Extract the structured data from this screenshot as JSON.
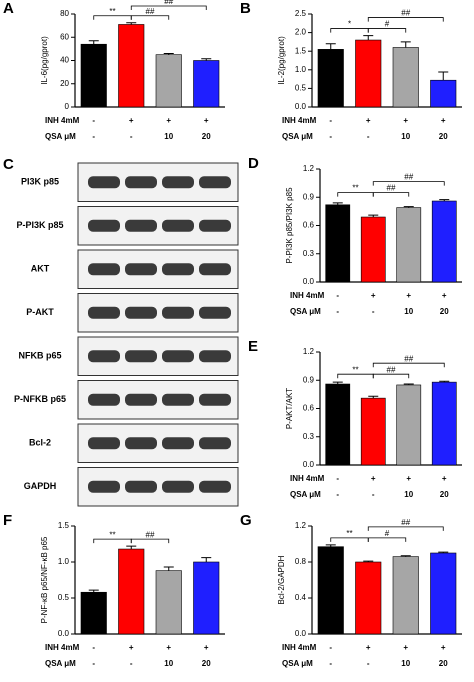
{
  "chart_data": [
    {
      "type": "bar",
      "panel_label": "A",
      "ylabel": "IL-6(pg/gprot)",
      "values": [
        54,
        71,
        45,
        40
      ],
      "errors": [
        3,
        1.5,
        1,
        1.5
      ],
      "colors": [
        "#000000",
        "#ff0000",
        "#a6a6a6",
        "#1f1fff"
      ],
      "ylim": [
        0,
        80
      ],
      "yticks": [
        0,
        20,
        40,
        60,
        80
      ],
      "treatments": [
        {
          "name": "INH 4mM",
          "levels": [
            "-",
            "+",
            "+",
            "+"
          ]
        },
        {
          "name": "QSA μM",
          "levels": [
            "-",
            "-",
            "10",
            "20"
          ]
        }
      ],
      "annotations": [
        {
          "label": "**",
          "from": 0,
          "to": 1
        },
        {
          "label": "##",
          "from": 1,
          "to": 2
        },
        {
          "label": "##",
          "from": 1,
          "to": 3
        }
      ]
    },
    {
      "type": "bar",
      "panel_label": "B",
      "ylabel": "IL-2(pg/gprot)",
      "values": [
        1.55,
        1.8,
        1.6,
        0.72
      ],
      "errors": [
        0.15,
        0.12,
        0.15,
        0.22
      ],
      "colors": [
        "#000000",
        "#ff0000",
        "#a6a6a6",
        "#1f1fff"
      ],
      "ylim": [
        0,
        2.5
      ],
      "yticks": [
        {
          "value": 0,
          "label": "0.0"
        },
        0.5,
        {
          "value": 1,
          "label": "1.0"
        },
        1.5,
        {
          "value": 2,
          "label": "2.0"
        },
        2.5
      ],
      "treatments": [
        {
          "name": "INH 4mM",
          "levels": [
            "-",
            "+",
            "+",
            "+"
          ]
        },
        {
          "name": "QSA μM",
          "levels": [
            "-",
            "-",
            "10",
            "20"
          ]
        }
      ],
      "annotations": [
        {
          "label": "*",
          "from": 0,
          "to": 1
        },
        {
          "label": "#",
          "from": 1,
          "to": 2
        },
        {
          "label": "##",
          "from": 1,
          "to": 3
        }
      ]
    },
    {
      "type": "bar",
      "panel_label": "D",
      "ylabel": "P-PI3K p85/PI3K p85",
      "values": [
        0.82,
        0.69,
        0.79,
        0.86
      ],
      "errors": [
        0.02,
        0.02,
        0.01,
        0.015
      ],
      "colors": [
        "#000000",
        "#ff0000",
        "#a6a6a6",
        "#1f1fff"
      ],
      "ylim": [
        0,
        1.2
      ],
      "yticks": [
        {
          "value": 0,
          "label": "0.0"
        },
        0.3,
        0.6,
        0.9,
        1.2
      ],
      "treatments": [
        {
          "name": "INH 4mM",
          "levels": [
            "-",
            "+",
            "+",
            "+"
          ]
        },
        {
          "name": "QSA μM",
          "levels": [
            "-",
            "-",
            "10",
            "20"
          ]
        }
      ],
      "annotations": [
        {
          "label": "**",
          "from": 0,
          "to": 1
        },
        {
          "label": "##",
          "from": 1,
          "to": 2
        },
        {
          "label": "##",
          "from": 1,
          "to": 3
        }
      ]
    },
    {
      "type": "bar",
      "panel_label": "E",
      "ylabel": "P-AKT/AKT",
      "values": [
        0.86,
        0.71,
        0.85,
        0.88
      ],
      "errors": [
        0.02,
        0.02,
        0.01,
        0.01
      ],
      "colors": [
        "#000000",
        "#ff0000",
        "#a6a6a6",
        "#1f1fff"
      ],
      "ylim": [
        0,
        1.2
      ],
      "yticks": [
        {
          "value": 0,
          "label": "0.0"
        },
        0.3,
        0.6,
        0.9,
        1.2
      ],
      "treatments": [
        {
          "name": "INH 4mM",
          "levels": [
            "-",
            "+",
            "+",
            "+"
          ]
        },
        {
          "name": "QSA μM",
          "levels": [
            "-",
            "-",
            "10",
            "20"
          ]
        }
      ],
      "annotations": [
        {
          "label": "**",
          "from": 0,
          "to": 1
        },
        {
          "label": "##",
          "from": 1,
          "to": 2
        },
        {
          "label": "##",
          "from": 1,
          "to": 3
        }
      ]
    },
    {
      "type": "bar",
      "panel_label": "F",
      "ylabel": "P-NF-κB p65/NF-κB p65",
      "values": [
        0.58,
        1.18,
        0.88,
        1.0
      ],
      "errors": [
        0.03,
        0.04,
        0.05,
        0.06
      ],
      "colors": [
        "#000000",
        "#ff0000",
        "#a6a6a6",
        "#1f1fff"
      ],
      "ylim": [
        0,
        1.5
      ],
      "yticks": [
        {
          "value": 0,
          "label": "0.0"
        },
        0.5,
        {
          "value": 1,
          "label": "1.0"
        },
        1.5
      ],
      "treatments": [
        {
          "name": "INH 4mM",
          "levels": [
            "-",
            "+",
            "+",
            "+"
          ]
        },
        {
          "name": "QSA μM",
          "levels": [
            "-",
            "-",
            "10",
            "20"
          ]
        }
      ],
      "annotations": [
        {
          "label": "**",
          "from": 0,
          "to": 1
        },
        {
          "label": "##",
          "from": 1,
          "to": 2
        }
      ]
    },
    {
      "type": "bar",
      "panel_label": "G",
      "ylabel": "Bcl-2/GAPDH",
      "values": [
        0.97,
        0.8,
        0.86,
        0.9
      ],
      "errors": [
        0.02,
        0.01,
        0.01,
        0.01
      ],
      "colors": [
        "#000000",
        "#ff0000",
        "#a6a6a6",
        "#1f1fff"
      ],
      "ylim": [
        0,
        1.2
      ],
      "yticks": [
        {
          "value": 0,
          "label": "0.0"
        },
        0.4,
        0.8,
        1.2
      ],
      "treatments": [
        {
          "name": "INH 4mM",
          "levels": [
            "-",
            "+",
            "+",
            "+"
          ]
        },
        {
          "name": "QSA μM",
          "levels": [
            "-",
            "-",
            "10",
            "20"
          ]
        }
      ],
      "annotations": [
        {
          "label": "**",
          "from": 0,
          "to": 1
        },
        {
          "label": "#",
          "from": 1,
          "to": 2
        },
        {
          "label": "##",
          "from": 1,
          "to": 3
        }
      ]
    }
  ],
  "blot": {
    "panel_label": "C",
    "rows": [
      "PI3K p85",
      "P-PI3K p85",
      "AKT",
      "P-AKT",
      "NFKB p65",
      "P-NFKB p65",
      "Bcl-2",
      "GAPDH"
    ]
  }
}
